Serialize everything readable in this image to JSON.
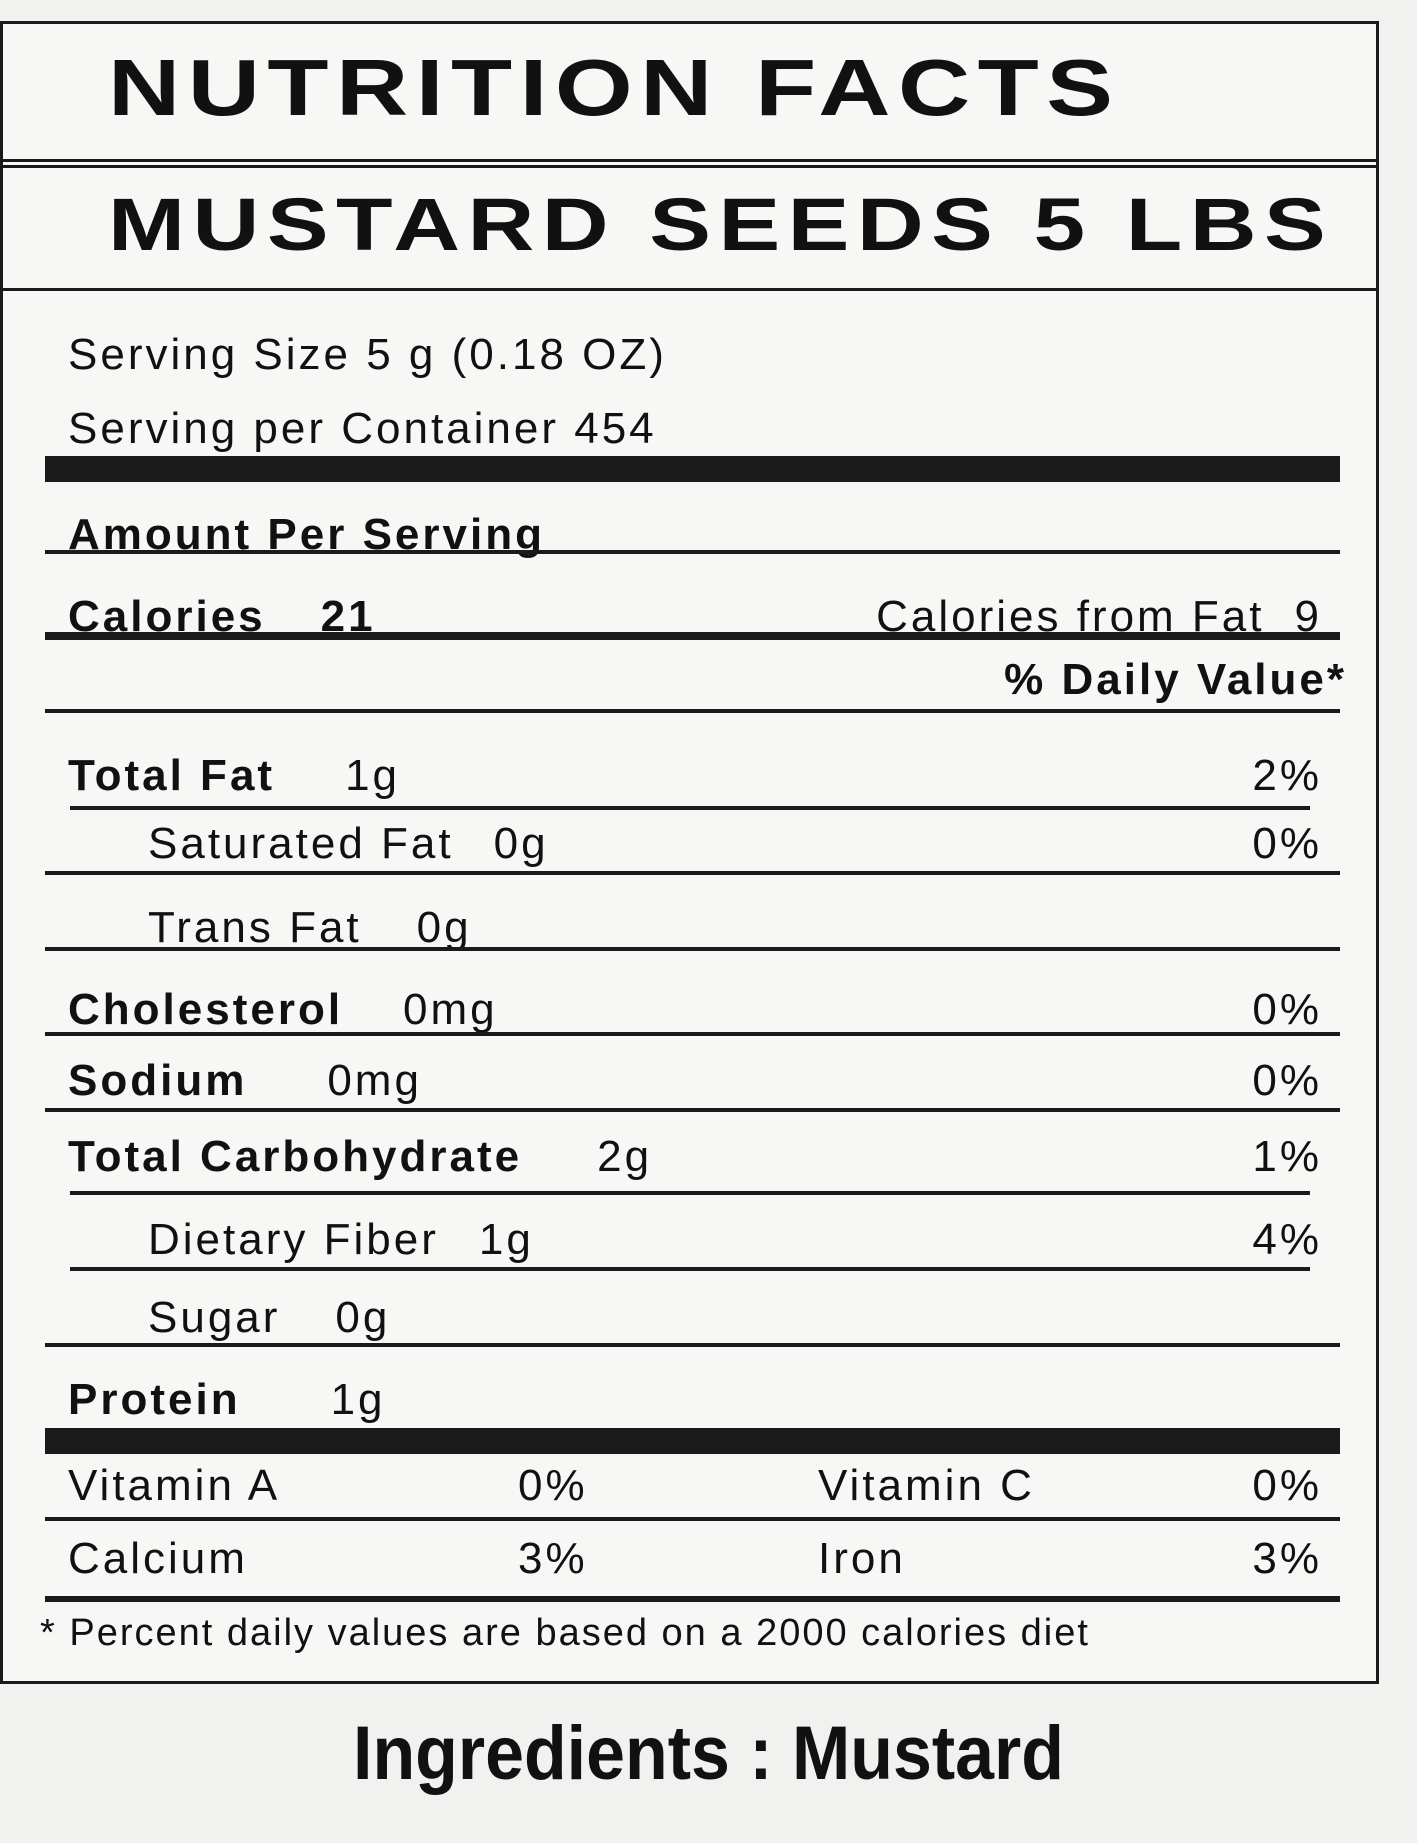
{
  "title": "NUTRITION FACTS",
  "product": "MUSTARD SEEDS 5 LBS",
  "serving_size": "Serving Size 5 g (0.18 OZ)",
  "servings_per_container": "Serving per Container  454",
  "amount_per_serving": "Amount Per Serving",
  "calories_label": "Calories",
  "calories_value": "21",
  "calories_fat_label": "Calories from Fat",
  "calories_fat_value": "9",
  "daily_value_header": "% Daily Value*",
  "nutrients": [
    {
      "label": "Total Fat",
      "amount": "1g",
      "dv": "2%"
    },
    {
      "label": "Saturated Fat",
      "amount": "0g",
      "dv": "0%"
    },
    {
      "label": "Trans Fat",
      "amount": "0g",
      "dv": ""
    },
    {
      "label": "Cholesterol",
      "amount": "0mg",
      "dv": "0%"
    },
    {
      "label": "Sodium",
      "amount": "0mg",
      "dv": "0%"
    },
    {
      "label": "Total Carbohydrate",
      "amount": "2g",
      "dv": "1%"
    },
    {
      "label": "Dietary Fiber",
      "amount": "1g",
      "dv": "4%"
    },
    {
      "label": "Sugar",
      "amount": "0g",
      "dv": ""
    },
    {
      "label": "Protein",
      "amount": "1g",
      "dv": ""
    }
  ],
  "vitamins": [
    {
      "label": "Vitamin A",
      "dv": "0%"
    },
    {
      "label": "Vitamin C",
      "dv": "0%"
    },
    {
      "label": "Calcium",
      "dv": "3%"
    },
    {
      "label": "Iron",
      "dv": "3%"
    }
  ],
  "footnote": "* Percent daily values are based on a 2000 calories diet",
  "ingredients": "Ingredients : Mustard"
}
